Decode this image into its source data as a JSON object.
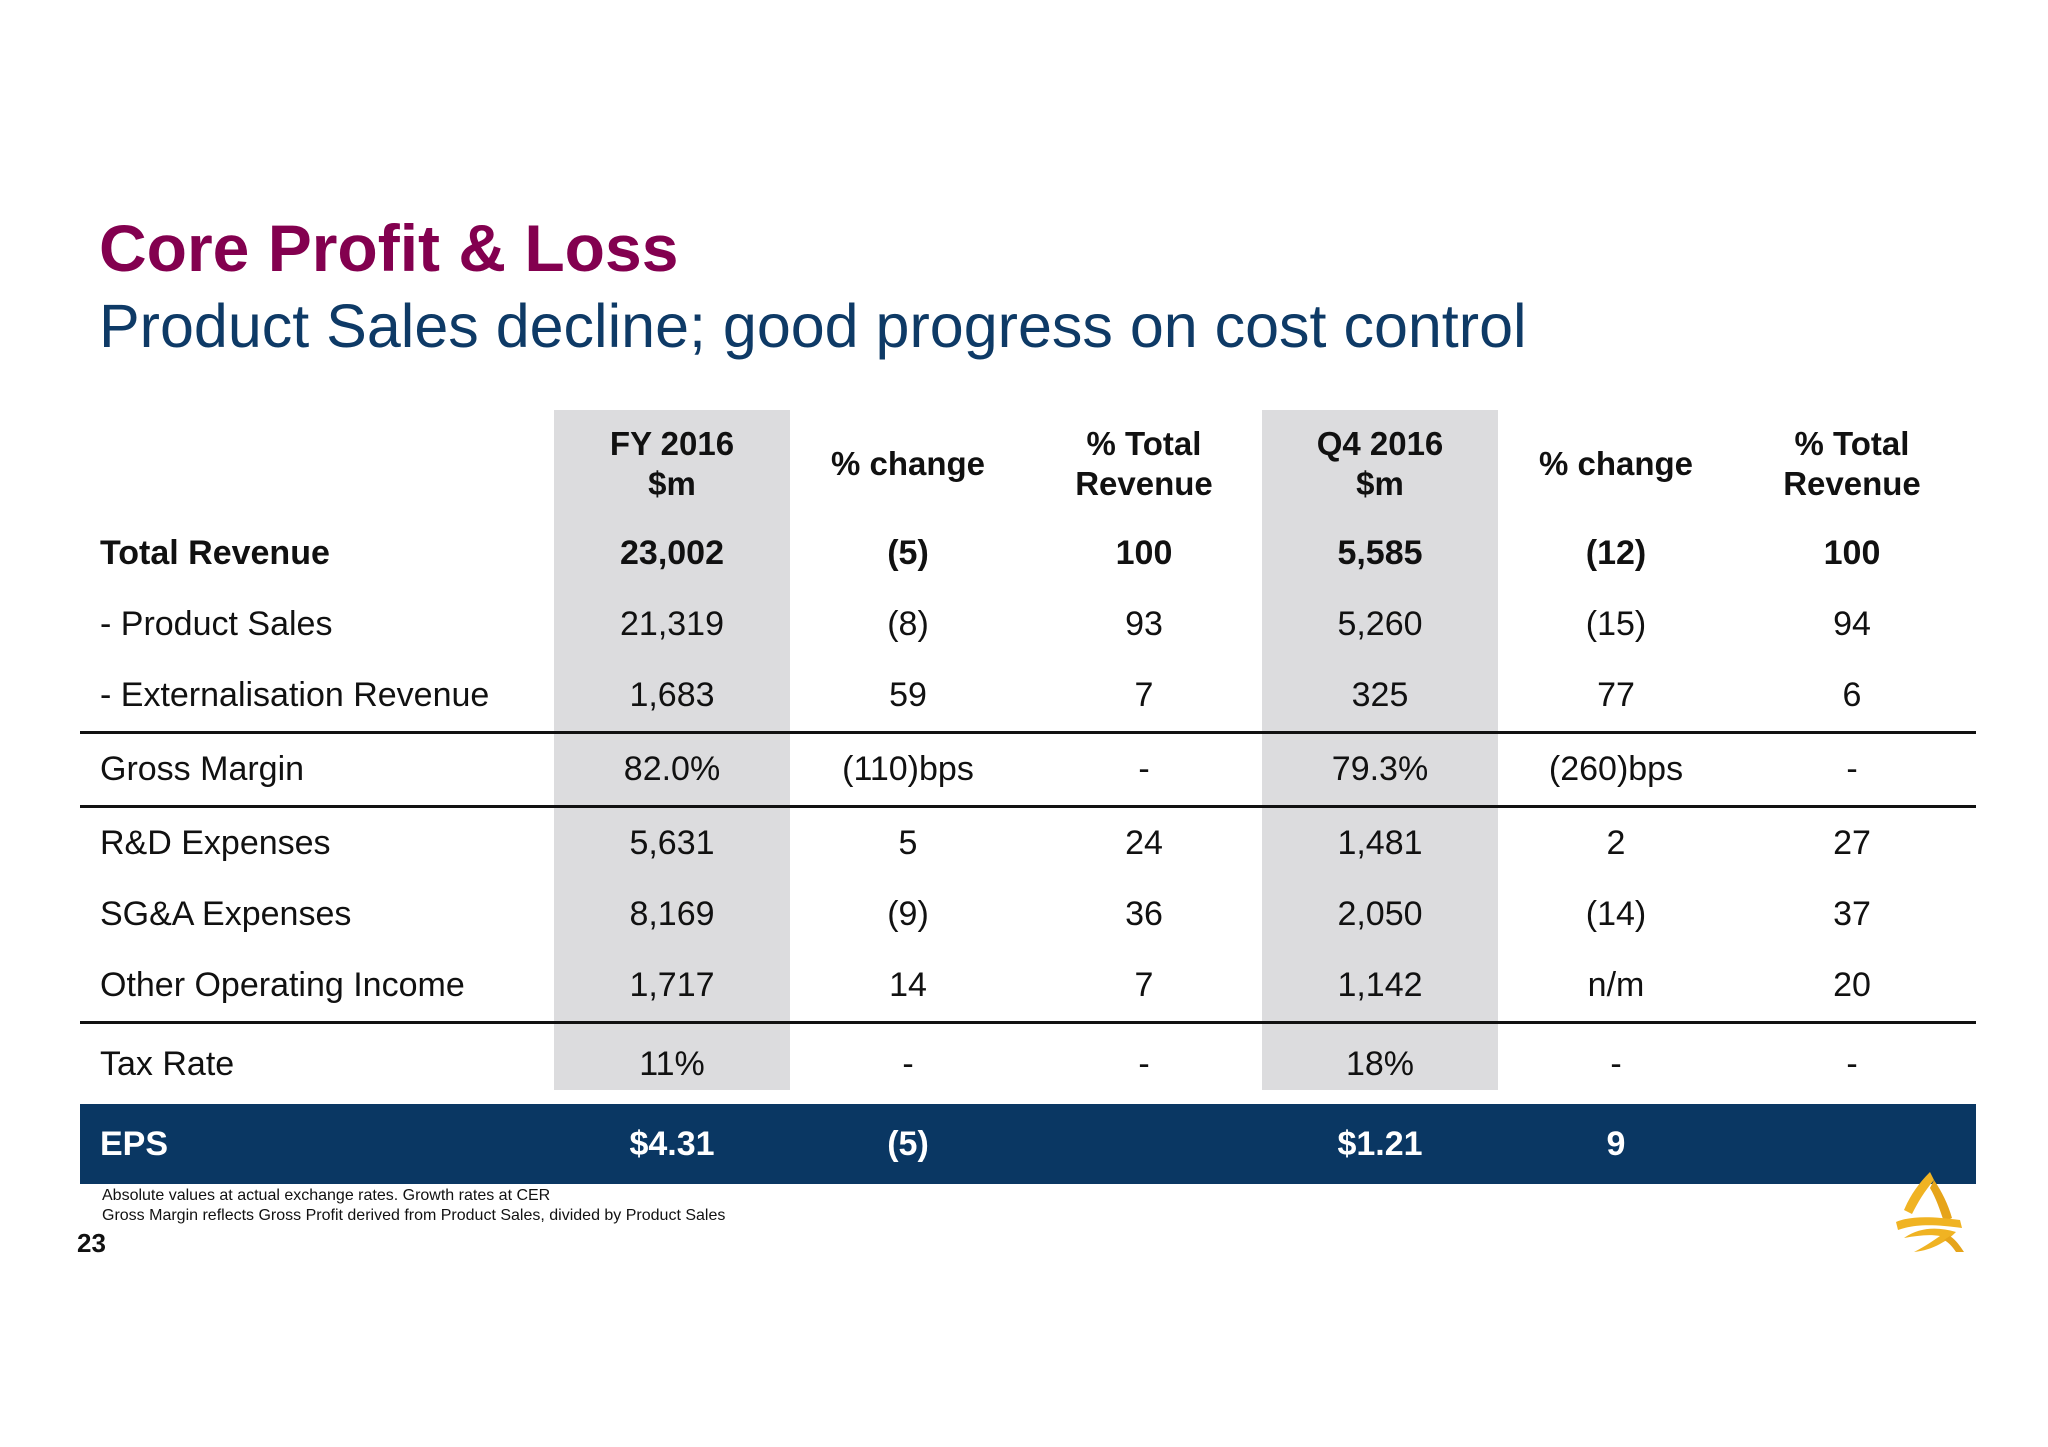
{
  "title": "Core Profit & Loss",
  "subtitle": "Product Sales decline; good progress on cost control",
  "table": {
    "headers": [
      "",
      "FY 2016\n$m",
      "% change",
      "% Total\nRevenue",
      "Q4 2016\n$m",
      "% change",
      "% Total\nRevenue"
    ],
    "rows": [
      {
        "cells": [
          "Total Revenue",
          "23,002",
          "(5)",
          "100",
          "5,585",
          "(12)",
          "100"
        ]
      },
      {
        "cells": [
          "- Product Sales",
          "21,319",
          "(8)",
          "93",
          "5,260",
          "(15)",
          "94"
        ]
      },
      {
        "cells": [
          "- Externalisation Revenue",
          "1,683",
          "59",
          "7",
          "325",
          "77",
          "6"
        ]
      },
      {
        "cells": [
          "Gross Margin",
          "82.0%",
          "(110)bps",
          "-",
          "79.3%",
          "(260)bps",
          "-"
        ]
      },
      {
        "cells": [
          "R&D Expenses",
          "5,631",
          "5",
          "24",
          "1,481",
          "2",
          "27"
        ]
      },
      {
        "cells": [
          "SG&A Expenses",
          "8,169",
          "(9)",
          "36",
          "2,050",
          "(14)",
          "37"
        ]
      },
      {
        "cells": [
          "Other Operating Income",
          "1,717",
          "14",
          "7",
          "1,142",
          "n/m",
          "20"
        ]
      },
      {
        "cells": [
          "Tax Rate",
          "11%",
          "-",
          "-",
          "18%",
          "-",
          "-"
        ]
      }
    ],
    "eps": {
      "cells": [
        "EPS",
        "$4.31",
        "(5)",
        "",
        "$1.21",
        "9",
        ""
      ]
    }
  },
  "footnotes": [
    "Absolute values at actual exchange rates. Growth rates at CER",
    "Gross Margin reflects Gross Profit derived from Product Sales, divided by Product Sales"
  ],
  "page_number": "23",
  "colors": {
    "title": "#83004f",
    "subtitle": "#0e3a66",
    "eps_band": "#0a3763",
    "shade": "#dcdcde",
    "logo": "#f0b323"
  },
  "icons": {
    "logo": "company-logo-icon"
  }
}
